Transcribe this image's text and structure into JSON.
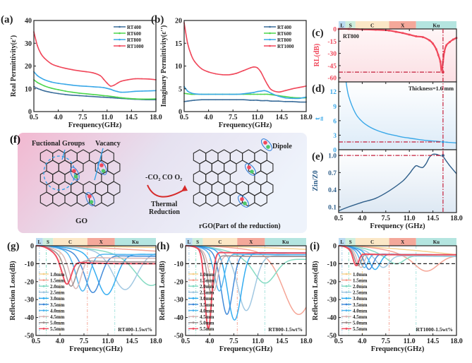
{
  "figure": {
    "bands": [
      {
        "label": "L",
        "range": [
          0.5,
          1.5
        ],
        "color": "#b9daf0"
      },
      {
        "label": "S",
        "range": [
          1.5,
          3.0
        ],
        "color": "#cdeedd"
      },
      {
        "label": "C",
        "range": [
          3.0,
          8.0
        ],
        "color": "#fbe7c6"
      },
      {
        "label": "X",
        "range": [
          8.0,
          12.0
        ],
        "color": "#f4a89a"
      },
      {
        "label": "Ku",
        "range": [
          12.0,
          18.0
        ],
        "color": "#b4e5e0"
      }
    ]
  },
  "chart_data": [
    {
      "id": "a",
      "panel_label": "(a)",
      "type": "line",
      "xlabel": "Frequency(GHz)",
      "ylabel": "Real Permittivity(ε')",
      "xlim": [
        0.5,
        18
      ],
      "ylim": [
        0,
        40
      ],
      "xticks": [
        0.5,
        4.0,
        7.5,
        11.0,
        14.5,
        18.0
      ],
      "yticks": [
        0,
        10,
        20,
        30,
        40
      ],
      "legend": "top-right",
      "x": [
        0.5,
        1,
        1.5,
        2,
        3,
        4,
        5,
        6,
        7,
        8,
        9,
        10,
        10.5,
        11,
        11.5,
        12,
        12.5,
        13,
        14,
        15,
        16,
        17,
        18
      ],
      "series": [
        {
          "name": "RT400",
          "color": "#3a6d9a",
          "values": [
            11,
            10.2,
            9.6,
            9.1,
            8.4,
            7.9,
            7.5,
            7.2,
            7.0,
            6.8,
            6.6,
            6.4,
            6.3,
            6.2,
            6.1,
            6.0,
            5.9,
            5.8,
            5.6,
            5.4,
            5.3,
            5.2,
            5.2
          ]
        },
        {
          "name": "RT600",
          "color": "#4cd54c",
          "values": [
            14,
            12.8,
            12,
            11.3,
            10.3,
            9.6,
            9,
            8.5,
            8.1,
            7.8,
            7.5,
            7.2,
            7.0,
            6.9,
            6.7,
            6.5,
            6.3,
            6.1,
            5.8,
            5.6,
            5.5,
            5.5,
            5.6
          ]
        },
        {
          "name": "RT800",
          "color": "#3aa8e8",
          "values": [
            17.5,
            15.8,
            14.8,
            14.0,
            13.0,
            12.4,
            12.0,
            11.6,
            11.3,
            11.1,
            10.9,
            10.7,
            10.5,
            10.2,
            9.8,
            9.2,
            8.8,
            8.5,
            8.6,
            8.9,
            9.0,
            9.1,
            9.2
          ]
        },
        {
          "name": "RT1000",
          "color": "#f0475a",
          "values": [
            35,
            29,
            25.5,
            23.5,
            21,
            19.8,
            19,
            18.4,
            17.9,
            17.5,
            17.0,
            15.8,
            14.2,
            12.5,
            11.2,
            11.6,
            12.5,
            13.3,
            14.0,
            14.4,
            14.4,
            14.3,
            14.0
          ]
        }
      ]
    },
    {
      "id": "b",
      "panel_label": "(b)",
      "type": "line",
      "xlabel": "Frequency(GHz)",
      "ylabel": "Imaginary Permittivity(ε'')",
      "xlim": [
        0.5,
        18
      ],
      "ylim": [
        0,
        20
      ],
      "xticks": [
        0.5,
        4.0,
        7.5,
        11.0,
        14.5,
        18.0
      ],
      "yticks": [
        0,
        5,
        10,
        15,
        20
      ],
      "legend": "top-right",
      "x": [
        0.5,
        1,
        1.5,
        2,
        3,
        4,
        5,
        6,
        7,
        8,
        9,
        10,
        10.5,
        11,
        11.5,
        12,
        12.5,
        13,
        14,
        15,
        16,
        17,
        18
      ],
      "series": [
        {
          "name": "RT400",
          "color": "#3a6d9a",
          "values": [
            2.2,
            2.3,
            2.4,
            2.5,
            2.6,
            2.6,
            2.6,
            2.6,
            2.6,
            2.6,
            2.6,
            2.5,
            2.5,
            2.5,
            2.4,
            2.4,
            2.4,
            2.3,
            2.3,
            2.2,
            2.2,
            2.1,
            2.1
          ]
        },
        {
          "name": "RT600",
          "color": "#4cd54c",
          "values": [
            4.0,
            3.9,
            3.8,
            3.8,
            3.8,
            3.8,
            3.8,
            3.8,
            3.8,
            3.8,
            3.8,
            3.8,
            3.8,
            3.8,
            3.8,
            3.8,
            3.8,
            3.7,
            3.5,
            3.3,
            3.1,
            3.0,
            3.0
          ]
        },
        {
          "name": "RT800",
          "color": "#3aa8e8",
          "values": [
            5.5,
            4.5,
            4.1,
            3.9,
            3.8,
            3.8,
            3.8,
            3.8,
            3.8,
            3.8,
            3.9,
            4.1,
            4.2,
            4.4,
            4.5,
            4.6,
            4.4,
            4.0,
            3.4,
            3.0,
            2.9,
            2.9,
            3.2
          ]
        },
        {
          "name": "RT1000",
          "color": "#f0475a",
          "values": [
            19.5,
            15,
            12.5,
            11,
            9.4,
            8.7,
            8.3,
            8.1,
            8.1,
            8.4,
            9.0,
            9.6,
            9.8,
            9.6,
            8.7,
            7.2,
            5.8,
            4.8,
            4.3,
            4.6,
            5.0,
            5.3,
            5.6
          ]
        }
      ]
    },
    {
      "id": "c",
      "panel_label": "(c)",
      "type": "line",
      "ylabel": "RL(dB)",
      "annotation": "RT800",
      "xlim": [
        0.5,
        18
      ],
      "ylim": [
        -65,
        0
      ],
      "yticks": [
        0,
        -15,
        -30,
        -45,
        -60
      ],
      "x": [
        0.5,
        2,
        4,
        6,
        8,
        9,
        10,
        11,
        12,
        13,
        14,
        14.5,
        15,
        15.3,
        15.6,
        15.8,
        16,
        16.2,
        16.5,
        17,
        17.5,
        18
      ],
      "values": [
        0,
        0,
        -0.5,
        -1,
        -2,
        -3.5,
        -5,
        -7,
        -9,
        -10,
        -14,
        -18,
        -25,
        -32,
        -40,
        -53,
        -40,
        -28,
        -20,
        -16,
        -13,
        -11
      ],
      "color": "#f0475a",
      "marker_line": {
        "x": 16.0,
        "y": -53
      }
    },
    {
      "id": "d",
      "panel_label": "(d)",
      "type": "line",
      "ylabel": "t_m",
      "annotation": "Thickness=1.6 mm",
      "xlim": [
        0.5,
        18
      ],
      "ylim": [
        0,
        14
      ],
      "yticks": [
        0,
        3,
        6,
        9,
        12
      ],
      "x": [
        1.6,
        2,
        3,
        4,
        5,
        6,
        7,
        8,
        9,
        10,
        11,
        12,
        13,
        14,
        15,
        16,
        17,
        18
      ],
      "values": [
        14,
        11,
        7.5,
        5.8,
        4.8,
        4.1,
        3.6,
        3.2,
        2.9,
        2.6,
        2.4,
        2.2,
        2.0,
        1.85,
        1.75,
        1.6,
        1.5,
        1.4
      ],
      "color": "#3aa8e8",
      "marker_line": {
        "x": 16.0,
        "y": 1.6
      }
    },
    {
      "id": "e",
      "panel_label": "(e)",
      "type": "line",
      "ylabel": "Z_in/Z_0",
      "xlabel": "Frequency (GHz)",
      "xlim": [
        0.5,
        18
      ],
      "ylim": [
        0,
        1.1
      ],
      "yticks": [
        0.1,
        0.4,
        0.7,
        1.0
      ],
      "xticks": [
        0.5,
        4.0,
        7.5,
        11.0,
        14.5,
        18.0
      ],
      "x": [
        0.5,
        2,
        4,
        6,
        8,
        10,
        11,
        11.5,
        12,
        12.5,
        13,
        13.5,
        14,
        14.5,
        15,
        15.5,
        16,
        16.5,
        17,
        18
      ],
      "values": [
        0.03,
        0.1,
        0.18,
        0.25,
        0.38,
        0.55,
        0.68,
        0.76,
        0.82,
        0.8,
        0.79,
        0.86,
        0.97,
        1.02,
        1.02,
        1.0,
        0.98,
        0.9,
        0.82,
        0.68
      ],
      "color": "#2f5f8a",
      "marker_line": {
        "x": 16.0,
        "y": 1.0
      }
    },
    {
      "id": "g",
      "panel_label": "(g)",
      "type": "line",
      "xlabel": "Frequency(GHz)",
      "ylabel": "Reflection Loss(dB)",
      "annotation": "RT400-1.5wt%",
      "xlim": [
        0.5,
        18
      ],
      "ylim": [
        -50,
        0
      ],
      "xticks": [
        0.5,
        4.0,
        7.5,
        11.0,
        14.5,
        18.0
      ],
      "yticks": [
        0,
        -10,
        -20,
        -30,
        -40,
        -50
      ],
      "legend": "bottom-left",
      "thicknesses": [
        "1.0mm",
        "1.5mm",
        "2.0mm",
        "2.5mm",
        "3.0mm",
        "3.5mm",
        "4.0mm",
        "4.5mm",
        "5.0mm",
        "5.5mm"
      ],
      "minima": [
        {
          "f": 22,
          "rl": -2
        },
        {
          "f": 19,
          "rl": -10
        },
        {
          "f": 17.3,
          "rl": -23
        },
        {
          "f": 13.5,
          "rl": -25
        },
        {
          "f": 10.8,
          "rl": -28
        },
        {
          "f": 8.8,
          "rl": -27
        },
        {
          "f": 7.3,
          "rl": -26
        },
        {
          "f": 6.3,
          "rl": -25
        },
        {
          "f": 5.6,
          "rl": -24
        },
        {
          "f": 5.0,
          "rl": -23
        }
      ],
      "plateau": [
        -1,
        -3,
        -6,
        -4,
        -5,
        -6,
        -5,
        -7,
        -9,
        -10
      ]
    },
    {
      "id": "h",
      "panel_label": "(h)",
      "type": "line",
      "xlabel": "Frequency(GHz)",
      "ylabel": "Reflection Loss(dB)",
      "annotation": "RT800-1.5wt%",
      "xlim": [
        0.5,
        18
      ],
      "ylim": [
        -50,
        0
      ],
      "xticks": [
        0.5,
        4.0,
        7.5,
        11.0,
        14.5,
        18.0
      ],
      "yticks": [
        0,
        -10,
        -20,
        -30,
        -40,
        -50
      ],
      "legend": "bottom-left",
      "thicknesses": [
        "1.0mm",
        "1.5mm",
        "2.0mm",
        "2.5mm",
        "3.0mm",
        "3.5mm",
        "4.0mm",
        "4.5mm",
        "5.0mm",
        "5.5mm"
      ],
      "minima": [
        {
          "f": 22,
          "rl": -3
        },
        {
          "f": 16.9,
          "rl": -39
        },
        {
          "f": 12.0,
          "rl": -22
        },
        {
          "f": 9.3,
          "rl": -37
        },
        {
          "f": 7.6,
          "rl": -42
        },
        {
          "f": 6.5,
          "rl": -39
        },
        {
          "f": 5.4,
          "rl": -26
        },
        {
          "f": 4.6,
          "rl": -26
        },
        {
          "f": 4.2,
          "rl": -27
        },
        {
          "f": 3.8,
          "rl": -47
        }
      ],
      "plateau": [
        -2,
        -5,
        -8,
        -6,
        -4,
        -5,
        -5,
        -6,
        -6,
        -4
      ]
    },
    {
      "id": "i",
      "panel_label": "(i)",
      "type": "line",
      "xlabel": "Frequency(GHz)",
      "ylabel": "Reflection Loss(dB)",
      "annotation": "RT1000-1.5wt%",
      "xlim": [
        0.5,
        18
      ],
      "ylim": [
        -50,
        0
      ],
      "xticks": [
        0.5,
        4.0,
        7.5,
        11.0,
        14.5,
        18.0
      ],
      "yticks": [
        0,
        -10,
        -20,
        -30,
        -40,
        -50
      ],
      "legend": "bottom-left",
      "thicknesses": [
        "1.0mm",
        "1.5mm",
        "2.0mm",
        "2.5mm",
        "3.0mm",
        "3.5mm",
        "4.0mm",
        "4.5mm",
        "5.0mm",
        "5.5mm"
      ],
      "minima": [
        {
          "f": 22,
          "rl": -6
        },
        {
          "f": 13.5,
          "rl": -15
        },
        {
          "f": 9.0,
          "rl": -11
        },
        {
          "f": 7.1,
          "rl": -13
        },
        {
          "f": 5.9,
          "rl": -14
        },
        {
          "f": 5.0,
          "rl": -14
        },
        {
          "f": 4.3,
          "rl": -13
        },
        {
          "f": 3.8,
          "rl": -13
        },
        {
          "f": 3.4,
          "rl": -12
        },
        {
          "f": 3.1,
          "rl": -12
        }
      ],
      "plateau": [
        -5,
        -6,
        -6,
        -6,
        -5,
        -5,
        -5,
        -5,
        -5,
        -5
      ]
    }
  ],
  "thickness_colors": [
    "#f5d08a",
    "#f4a090",
    "#7fd9c0",
    "#9cc5e0",
    "#2aa9f0",
    "#3a86d8",
    "#4cb4f0",
    "#d8b4b4",
    "#9a8a8a",
    "#f0475a"
  ],
  "reflines": {
    "rl_threshold": -10,
    "band_edges": [
      1.0,
      2.0,
      4.0,
      8.0,
      12.0
    ]
  },
  "schematic": {
    "panel_label": "(f)",
    "functional_groups": "Fuctional Groups",
    "vacancy": "Vacancy",
    "dipole": "Dipole",
    "go_label": "GO",
    "rgo_label": "rGO(Part of the reduction)",
    "reaction_top": "-CO₂ CO O₂",
    "reaction_bottom1": "Thermal",
    "reaction_bottom2": "Reduction"
  }
}
